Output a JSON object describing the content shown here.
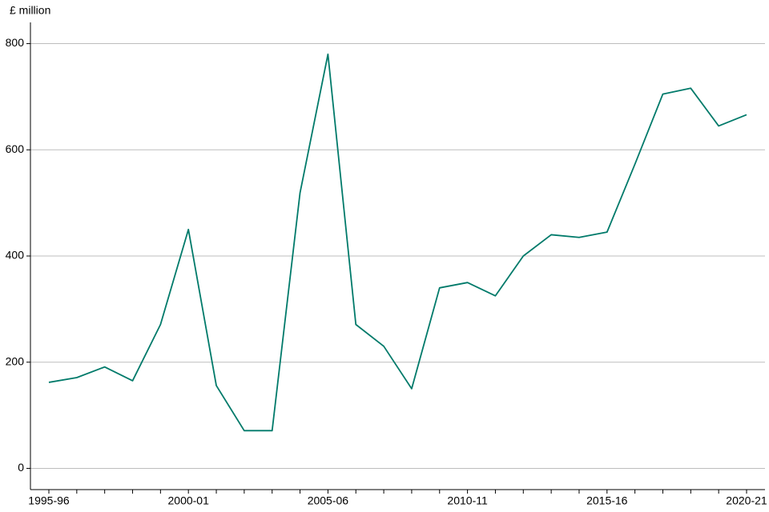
{
  "chart_data": {
    "type": "line",
    "y_label": "£ million",
    "categories": [
      "1995-96",
      null,
      null,
      null,
      null,
      "2000-01",
      null,
      null,
      null,
      null,
      "2005-06",
      null,
      null,
      null,
      null,
      "2010-11",
      null,
      null,
      null,
      null,
      "2015-16",
      null,
      null,
      null,
      null,
      "2020-21"
    ],
    "values": [
      162,
      171,
      191,
      165,
      271,
      450,
      156,
      71,
      71,
      519,
      780,
      271,
      230,
      150,
      340,
      350,
      325,
      400,
      440,
      435,
      445,
      573,
      705,
      716,
      645,
      666
    ],
    "color": "#007a6a",
    "ylim": [
      -40,
      840
    ],
    "yticks": [
      0,
      200,
      400,
      600,
      800
    ],
    "grid": true
  }
}
